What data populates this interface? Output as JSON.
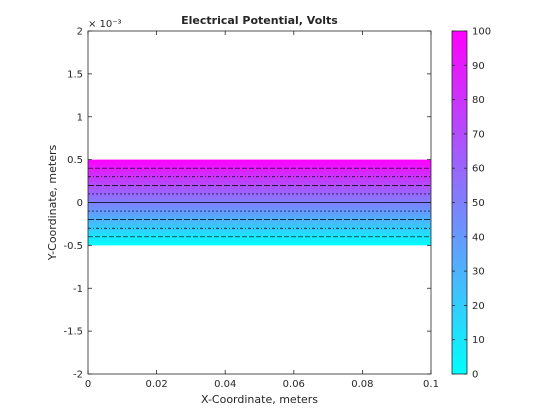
{
  "chart_data": {
    "type": "heatmap",
    "title": "Electrical Potential, Volts",
    "xlabel": "X-Coordinate, meters",
    "ylabel": "Y-Coordinate, meters",
    "xlim": [
      0,
      0.1
    ],
    "ylim": [
      -0.002,
      0.002
    ],
    "y_exponent_label": "× 10⁻³",
    "x_ticks": [
      {
        "value": 0,
        "label": "0"
      },
      {
        "value": 0.02,
        "label": "0.02"
      },
      {
        "value": 0.04,
        "label": "0.04"
      },
      {
        "value": 0.06,
        "label": "0.06"
      },
      {
        "value": 0.08,
        "label": "0.08"
      },
      {
        "value": 0.1,
        "label": "0.1"
      }
    ],
    "y_ticks": [
      {
        "value": -0.002,
        "label": "-2"
      },
      {
        "value": -0.0015,
        "label": "-1.5"
      },
      {
        "value": -0.001,
        "label": "-1"
      },
      {
        "value": -0.0005,
        "label": "-0.5"
      },
      {
        "value": 0,
        "label": "0"
      },
      {
        "value": 0.0005,
        "label": "0.5"
      },
      {
        "value": 0.001,
        "label": "1"
      },
      {
        "value": 0.0015,
        "label": "1.5"
      },
      {
        "value": 0.002,
        "label": "2"
      }
    ],
    "field_region": {
      "x": [
        0,
        0.1
      ],
      "y": [
        -0.0005,
        0.0005
      ]
    },
    "potential_range": [
      0,
      100
    ],
    "colormap": {
      "low": "#00ffff",
      "high": "#ff00ff"
    },
    "contour_levels_y": [
      -0.0004,
      -0.0003,
      -0.0002,
      -0.0001,
      0,
      0.0001,
      0.0002,
      0.0003,
      0.0004
    ],
    "colorbar": {
      "clim": [
        0,
        100
      ],
      "ticks": [
        {
          "value": 0,
          "label": "0"
        },
        {
          "value": 10,
          "label": "10"
        },
        {
          "value": 20,
          "label": "20"
        },
        {
          "value": 30,
          "label": "30"
        },
        {
          "value": 40,
          "label": "40"
        },
        {
          "value": 50,
          "label": "50"
        },
        {
          "value": 60,
          "label": "60"
        },
        {
          "value": 70,
          "label": "70"
        },
        {
          "value": 80,
          "label": "80"
        },
        {
          "value": 90,
          "label": "90"
        },
        {
          "value": 100,
          "label": "100"
        }
      ]
    }
  }
}
